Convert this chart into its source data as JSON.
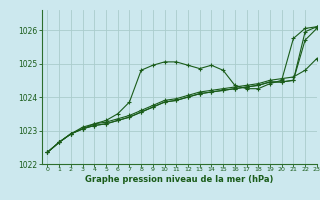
{
  "background_color": "#cce8ee",
  "grid_color": "#aacccc",
  "line_color": "#1a5c1a",
  "title": "Graphe pression niveau de la mer (hPa)",
  "xlim": [
    -0.5,
    23
  ],
  "ylim": [
    1022.0,
    1026.6
  ],
  "yticks": [
    1022,
    1023,
    1024,
    1025,
    1026
  ],
  "xticks": [
    0,
    1,
    2,
    3,
    4,
    5,
    6,
    7,
    8,
    9,
    10,
    11,
    12,
    13,
    14,
    15,
    16,
    17,
    18,
    19,
    20,
    21,
    22,
    23
  ],
  "series": [
    [
      1022.35,
      1022.65,
      1022.9,
      1023.05,
      1023.2,
      1023.3,
      1023.5,
      1023.85,
      1024.8,
      1024.95,
      1025.05,
      1025.05,
      1024.95,
      1024.85,
      1024.95,
      1024.8,
      1024.35,
      1024.25,
      1024.25,
      1024.4,
      1024.5,
      1025.75,
      1026.05,
      1026.1
    ],
    [
      1022.35,
      1022.65,
      1022.9,
      1023.05,
      1023.15,
      1023.2,
      1023.3,
      1023.4,
      1023.55,
      1023.7,
      1023.85,
      1023.9,
      1024.0,
      1024.1,
      1024.15,
      1024.2,
      1024.25,
      1024.3,
      1024.35,
      1024.45,
      1024.45,
      1024.5,
      1025.95,
      1026.1
    ],
    [
      1022.35,
      1022.65,
      1022.9,
      1023.05,
      1023.15,
      1023.2,
      1023.3,
      1023.4,
      1023.55,
      1023.7,
      1023.85,
      1023.9,
      1024.0,
      1024.1,
      1024.15,
      1024.2,
      1024.25,
      1024.3,
      1024.35,
      1024.45,
      1024.45,
      1024.5,
      1025.7,
      1026.05
    ],
    [
      1022.35,
      1022.65,
      1022.9,
      1023.1,
      1023.2,
      1023.25,
      1023.35,
      1023.45,
      1023.6,
      1023.75,
      1023.9,
      1023.95,
      1024.05,
      1024.15,
      1024.2,
      1024.25,
      1024.3,
      1024.35,
      1024.4,
      1024.5,
      1024.55,
      1024.6,
      1024.8,
      1025.15
    ]
  ],
  "marker": "+",
  "markersize": 3,
  "linewidth": 0.8,
  "title_fontsize": 6.0,
  "tick_fontsize": 4.5,
  "ytick_fontsize": 5.5
}
